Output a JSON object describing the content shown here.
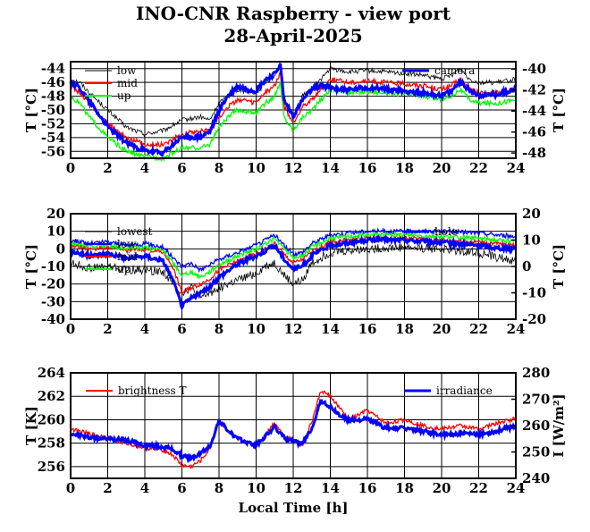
{
  "title": "INO-CNR Raspberry - view port",
  "date": "28-April-2025",
  "xlabel": "Local Time [h]",
  "x_ticks": [
    "0",
    "2",
    "4",
    "6",
    "8",
    "10",
    "12",
    "14",
    "16",
    "18",
    "20",
    "22",
    "24"
  ],
  "chart_data": [
    {
      "type": "line",
      "ylabel": "T [°C]",
      "ylabel_right": "T [°C]",
      "xlim": [
        0,
        24
      ],
      "ylim": [
        -57,
        -43
      ],
      "ylim_right": [
        -48.5,
        -39.3
      ],
      "left_ticks": [
        -44,
        -46,
        -48,
        -50,
        -52,
        -54,
        -56
      ],
      "right_ticks": [
        -40,
        -42,
        -44,
        -46,
        -48
      ],
      "grid": true,
      "series": [
        {
          "name": "low",
          "color": "#000000",
          "axis": "left",
          "x": [
            0,
            0.5,
            1,
            2,
            3,
            4,
            5,
            6,
            7,
            7.5,
            8,
            8.5,
            9,
            10,
            10.5,
            11,
            11.3,
            11.5,
            12,
            12.5,
            13,
            13.5,
            14,
            15,
            16,
            17,
            18,
            19,
            20,
            20.5,
            21,
            21.5,
            22,
            23,
            24
          ],
          "values": [
            -45.5,
            -46,
            -47.5,
            -50,
            -52.5,
            -53.5,
            -53,
            -51.5,
            -51,
            -51.5,
            -49,
            -48,
            -47,
            -47.5,
            -46,
            -45,
            -43.5,
            -48,
            -51,
            -48,
            -47,
            -45.5,
            -44,
            -44.5,
            -44.3,
            -44.5,
            -44.7,
            -45,
            -45.5,
            -45,
            -44,
            -45.5,
            -46,
            -46,
            -45.5
          ]
        },
        {
          "name": "mid",
          "color": "#ff0000",
          "axis": "left",
          "x": [
            0,
            0.5,
            1,
            2,
            3,
            4,
            5,
            6,
            7,
            7.5,
            8,
            8.5,
            9,
            10,
            10.5,
            11,
            11.3,
            11.5,
            12,
            12.5,
            13,
            13.5,
            14,
            15,
            16,
            17,
            18,
            19,
            20,
            20.5,
            21,
            21.5,
            22,
            23,
            24
          ],
          "values": [
            -46.5,
            -47.5,
            -49,
            -52,
            -54,
            -55,
            -55,
            -53.5,
            -53,
            -53,
            -51,
            -49.5,
            -48.5,
            -49,
            -47.5,
            -46.5,
            -44.5,
            -49.5,
            -52,
            -49.5,
            -48.5,
            -47,
            -45.5,
            -46,
            -45.8,
            -46,
            -46.2,
            -46.5,
            -47,
            -46.5,
            -45.5,
            -47,
            -47.5,
            -47.5,
            -47
          ]
        },
        {
          "name": "up",
          "color": "#00ff00",
          "axis": "left",
          "x": [
            0,
            0.5,
            1,
            2,
            3,
            4,
            5,
            6,
            7,
            7.5,
            8,
            8.5,
            9,
            10,
            10.5,
            11,
            11.3,
            11.5,
            12,
            12.5,
            13,
            13.5,
            14,
            15,
            16,
            17,
            18,
            19,
            20,
            20.5,
            21,
            21.5,
            22,
            23,
            24
          ],
          "values": [
            -48,
            -49,
            -51,
            -54,
            -56,
            -56.8,
            -57,
            -55.5,
            -55.5,
            -55,
            -52.5,
            -51,
            -50,
            -50.5,
            -49,
            -48,
            -46,
            -51,
            -53,
            -51,
            -50,
            -48.5,
            -47,
            -47.5,
            -47.3,
            -47.5,
            -47.7,
            -48,
            -48.5,
            -48,
            -47,
            -48.5,
            -49,
            -49,
            -48.5
          ]
        },
        {
          "name": "camera",
          "color": "#0000ff",
          "axis": "right",
          "x": [
            0,
            0.5,
            1,
            2,
            3,
            4,
            5,
            6,
            7,
            7.5,
            8,
            8.5,
            9,
            10,
            10.5,
            11,
            11.3,
            11.5,
            12,
            12.5,
            13,
            13.5,
            14,
            15,
            16,
            17,
            18,
            19,
            20,
            20.5,
            21,
            21.5,
            22,
            23,
            24
          ],
          "values": [
            -41.2,
            -41.8,
            -43,
            -45.5,
            -47,
            -47.8,
            -48,
            -46.5,
            -46.5,
            -46,
            -44,
            -42.5,
            -41.7,
            -42.1,
            -41,
            -40.5,
            -39.5,
            -43,
            -44.5,
            -43,
            -42,
            -41.5,
            -41.8,
            -42,
            -41.8,
            -41.9,
            -42.1,
            -42.3,
            -42.5,
            -42.2,
            -41.2,
            -42,
            -42.5,
            -42.4,
            -41.9
          ]
        }
      ]
    },
    {
      "type": "line",
      "ylabel": "T [°C]",
      "ylabel_right": "T [°C]",
      "xlim": [
        0,
        24
      ],
      "ylim": [
        -40,
        20
      ],
      "ylim_right": [
        -20,
        20
      ],
      "left_ticks": [
        20,
        10,
        0,
        -10,
        -20,
        -30,
        -40
      ],
      "right_ticks": [
        20,
        10,
        0,
        -10,
        -20
      ],
      "grid": true,
      "series": [
        {
          "name": "lowest",
          "color": "#000000",
          "axis": "left",
          "x": [
            0,
            1,
            2,
            3,
            4,
            5,
            5.5,
            6,
            6.5,
            7,
            7.5,
            8,
            9,
            10,
            10.5,
            11,
            11.5,
            12,
            12.5,
            13,
            14,
            16,
            18,
            20,
            22,
            23,
            24
          ],
          "values": [
            -8,
            -11,
            -10,
            -12,
            -12,
            -13,
            -20,
            -25,
            -22,
            -28,
            -25,
            -22,
            -18,
            -14,
            -10,
            -8,
            -15,
            -20,
            -18,
            -8,
            -2,
            0,
            1,
            0,
            -2,
            -5,
            -7
          ]
        },
        {
          "name": "low",
          "color": "#0000ff",
          "axis": "left",
          "thin": true,
          "x": [
            0,
            1,
            2,
            3,
            4,
            5,
            5.5,
            6,
            6.5,
            7,
            7.5,
            8,
            9,
            10,
            10.5,
            11,
            11.5,
            12,
            12.5,
            13,
            14,
            16,
            18,
            20,
            22,
            23,
            24
          ],
          "values": [
            5,
            3,
            4,
            2,
            3,
            1,
            -5,
            -10,
            -8,
            -12,
            -9,
            -6,
            -2,
            2,
            5,
            8,
            2,
            -3,
            -2,
            3,
            8,
            10,
            10,
            10,
            9,
            8,
            7
          ]
        },
        {
          "name": "mid",
          "color": "#ff0000",
          "axis": "left",
          "x": [
            0,
            1,
            2,
            3,
            4,
            5,
            5.5,
            6,
            6.5,
            7,
            7.5,
            8,
            9,
            10,
            10.5,
            11,
            11.5,
            12,
            12.5,
            13,
            14,
            16,
            18,
            20,
            22,
            23,
            24
          ],
          "values": [
            2,
            0,
            1,
            -1,
            0,
            -2,
            -10,
            -25,
            -22,
            -20,
            -17,
            -12,
            -7,
            -3,
            0,
            3,
            -3,
            -8,
            -6,
            -2,
            4,
            6,
            6,
            5,
            4,
            3,
            2
          ]
        },
        {
          "name": "up",
          "color": "#00ff00",
          "axis": "left",
          "x": [
            0,
            1,
            2,
            3,
            4,
            5,
            5.5,
            6,
            6.5,
            7,
            7.5,
            8,
            9,
            10,
            10.5,
            11,
            11.5,
            12,
            12.5,
            13,
            14,
            16,
            18,
            20,
            22,
            23,
            24
          ],
          "values": [
            3,
            1,
            2,
            0,
            1,
            -1,
            -8,
            -15,
            -13,
            -16,
            -13,
            -9,
            -4,
            0,
            3,
            6,
            0,
            -5,
            -4,
            1,
            6,
            8,
            8,
            7,
            6,
            5,
            4
          ]
        },
        {
          "name": "hole",
          "color": "#0000ff",
          "axis": "right",
          "x": [
            0,
            1,
            2,
            3,
            4,
            5,
            5.5,
            6,
            6.5,
            7,
            7.5,
            8,
            9,
            10,
            10.5,
            11,
            11.5,
            12,
            12.5,
            13,
            14,
            16,
            18,
            20,
            22,
            23,
            24
          ],
          "values": [
            6,
            4,
            5,
            3,
            4,
            2,
            -5,
            -15,
            -12,
            -10,
            -8,
            -4,
            1,
            4,
            6,
            8,
            3,
            -1,
            0,
            4,
            8,
            10,
            10,
            9,
            8,
            7,
            7
          ]
        }
      ]
    },
    {
      "type": "line",
      "ylabel": "T [K]",
      "ylabel_right": "I [W/m²]",
      "xlim": [
        0,
        24
      ],
      "ylim": [
        255,
        264
      ],
      "ylim_right": [
        240,
        280
      ],
      "left_ticks": [
        264,
        262,
        260,
        258,
        256
      ],
      "right_ticks": [
        280,
        270,
        260,
        250,
        240
      ],
      "grid": true,
      "series": [
        {
          "name": "brightness T",
          "color": "#ff0000",
          "axis": "left",
          "x": [
            0,
            1,
            2,
            3,
            4,
            5,
            5.5,
            6,
            6.5,
            7,
            7.5,
            8,
            8.5,
            9,
            10,
            10.5,
            11,
            11.5,
            12,
            12.5,
            13,
            13.5,
            14,
            14.5,
            15,
            16,
            17,
            18,
            19,
            20,
            21,
            22,
            23,
            24
          ],
          "values": [
            259.2,
            258.8,
            258.5,
            258.0,
            257.6,
            257.4,
            257.0,
            256.1,
            256.0,
            256.5,
            257.5,
            259.8,
            259.0,
            258.3,
            257.8,
            258.7,
            259.8,
            258.6,
            258.3,
            257.9,
            259.8,
            262.5,
            262.0,
            261.0,
            260.0,
            260.8,
            259.7,
            260.0,
            259.5,
            259.2,
            259.5,
            259.2,
            259.7,
            260.1
          ]
        },
        {
          "name": "irradiance",
          "color": "#0000ff",
          "axis": "right",
          "x": [
            0,
            1,
            2,
            3,
            4,
            5,
            5.5,
            6,
            6.5,
            7,
            7.5,
            8,
            8.5,
            9,
            10,
            10.5,
            11,
            11.5,
            12,
            12.5,
            13,
            13.5,
            14,
            14.5,
            15,
            16,
            17,
            18,
            19,
            20,
            21,
            22,
            23,
            24
          ],
          "values": [
            257.0,
            255.5,
            255.0,
            254.5,
            252.5,
            252.0,
            251.0,
            248.5,
            247.5,
            249.5,
            252.0,
            262.0,
            258.0,
            255.0,
            252.5,
            256.0,
            259.5,
            255.5,
            254.0,
            253.0,
            259.0,
            269.5,
            267.0,
            264.0,
            262.0,
            262.5,
            259.0,
            259.0,
            258.0,
            256.5,
            257.0,
            256.5,
            258.0,
            260.0
          ]
        }
      ]
    }
  ]
}
